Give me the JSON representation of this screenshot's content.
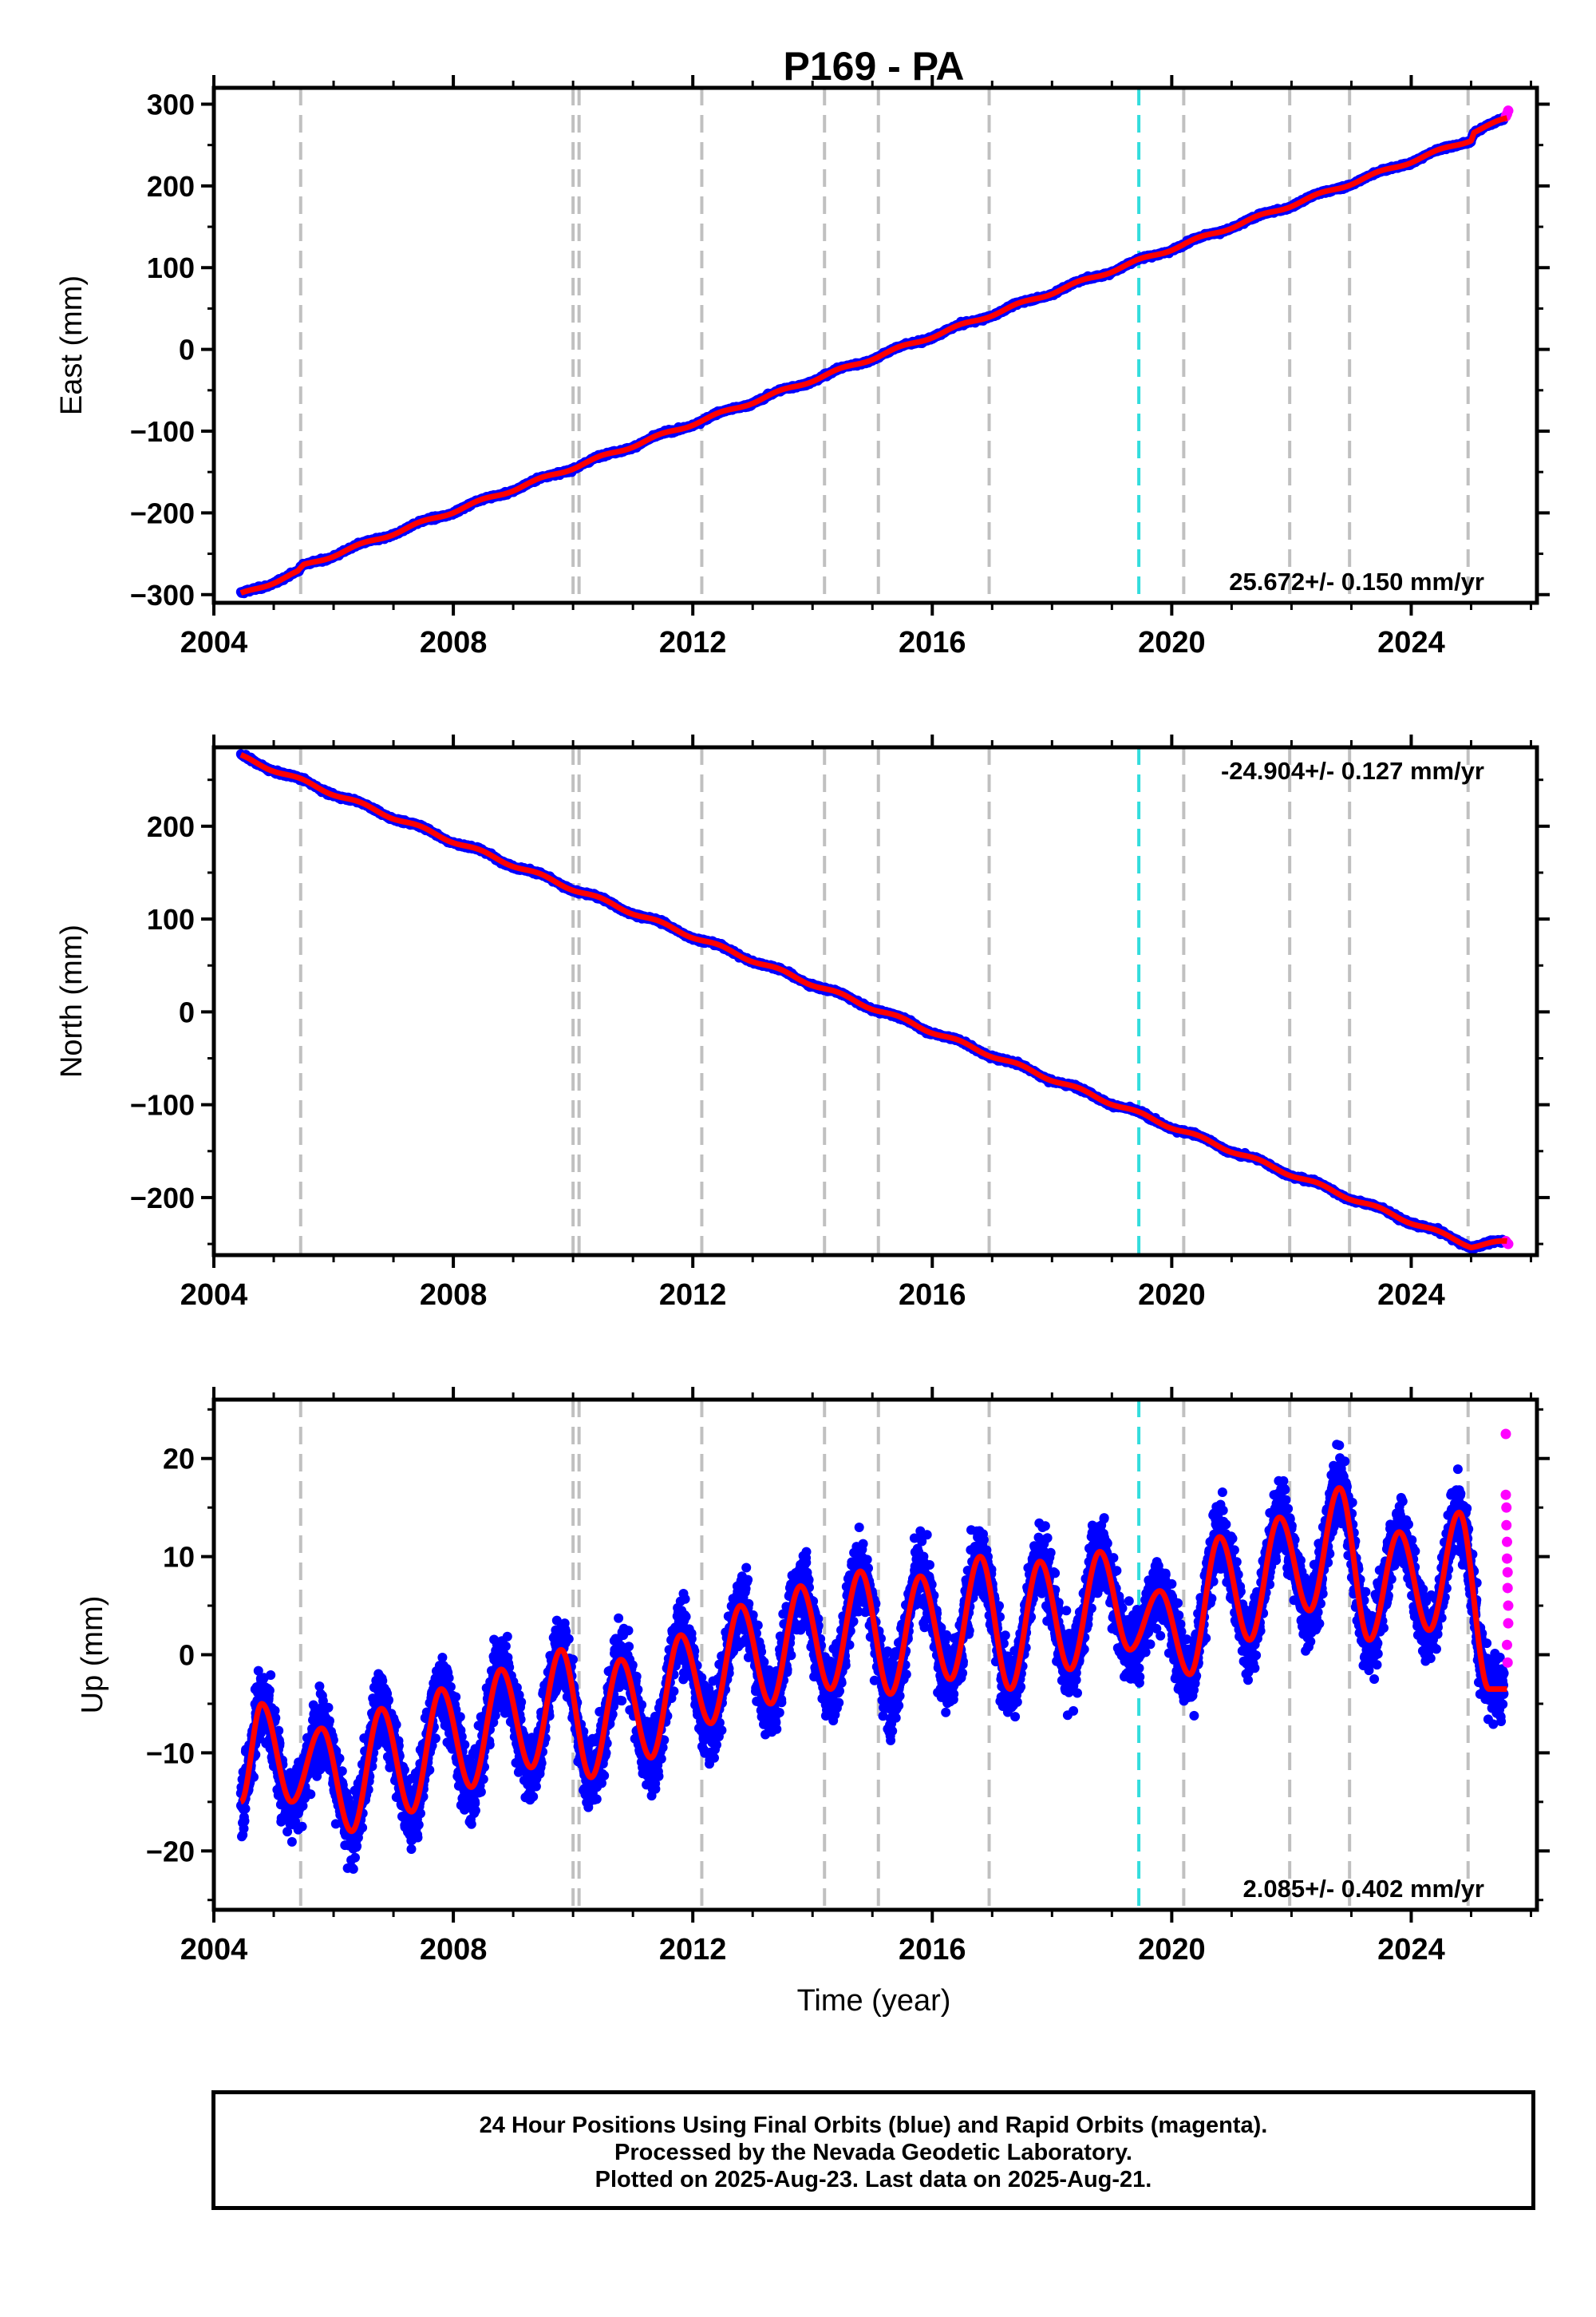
{
  "title": "P169 - PA",
  "xlabel": "Time (year)",
  "chart_data": [
    {
      "type": "scatter",
      "panel": "east",
      "ylabel": "East (mm)",
      "xlim": [
        2004.0,
        2026.1
      ],
      "ylim": [
        -310,
        320
      ],
      "yticks": [
        -300,
        -200,
        -100,
        0,
        100,
        200,
        300
      ],
      "xticks": [
        2004,
        2008,
        2012,
        2016,
        2020,
        2024
      ],
      "rate_label": "25.672+/- 0.150 mm/yr",
      "rate_position": "bottom-right",
      "series": [
        {
          "name": "Final Orbits (blue)",
          "color": "#0000ff",
          "trend": {
            "x": [
              2004.45,
              2005.4,
              2005.5,
              2025.0,
              2025.05,
              2025.6
            ],
            "y": [
              -300,
              -273,
              -265,
              257,
              267,
              282
            ]
          }
        },
        {
          "name": "Rapid Orbits (magenta)",
          "color": "#ff00ff",
          "x": [
            2025.58,
            2025.6,
            2025.62
          ],
          "y": [
            285,
            288,
            292
          ]
        },
        {
          "name": "model",
          "color": "#ff0000",
          "type": "line"
        }
      ]
    },
    {
      "type": "scatter",
      "panel": "north",
      "ylabel": "North (mm)",
      "xlim": [
        2004.0,
        2026.1
      ],
      "ylim": [
        -262,
        285
      ],
      "yticks": [
        -200,
        -100,
        0,
        100,
        200
      ],
      "xticks": [
        2004,
        2008,
        2012,
        2016,
        2020,
        2024
      ],
      "rate_label": "-24.904+/- 0.127 mm/yr",
      "rate_position": "top-right",
      "series": [
        {
          "name": "Final Orbits (blue)",
          "color": "#0000ff",
          "trend": {
            "x": [
              2004.45,
              2025.0,
              2025.6
            ],
            "y": [
              275,
              -252,
              -248
            ]
          }
        },
        {
          "name": "Rapid Orbits (magenta)",
          "color": "#ff00ff",
          "x": [
            2025.58,
            2025.6,
            2025.62
          ],
          "y": [
            -247,
            -249,
            -250
          ]
        },
        {
          "name": "model",
          "color": "#ff0000",
          "type": "line"
        }
      ]
    },
    {
      "type": "scatter",
      "panel": "up",
      "ylabel": "Up (mm)",
      "xlim": [
        2004.0,
        2026.1
      ],
      "ylim": [
        -26,
        26
      ],
      "yticks": [
        -20,
        -10,
        0,
        10,
        20
      ],
      "xticks": [
        2004,
        2008,
        2012,
        2016,
        2020,
        2024
      ],
      "rate_label": "2.085+/- 0.402 mm/yr",
      "rate_position": "bottom-right",
      "seasonal": {
        "peaks_x": [
          2004.8,
          2005.8,
          2006.8,
          2007.8,
          2008.8,
          2009.8,
          2010.8,
          2011.8,
          2012.8,
          2013.8,
          2014.8,
          2015.8,
          2016.8,
          2017.8,
          2018.8,
          2019.8,
          2020.8,
          2021.8,
          2022.8,
          2023.8,
          2024.8
        ],
        "peaks_y": [
          -5,
          -7.5,
          -5.5,
          -3.5,
          -1.5,
          0.5,
          -0.5,
          2,
          5,
          7,
          8.5,
          8,
          10,
          9.5,
          10.5,
          6.5,
          12,
          14,
          17,
          12.5,
          14.5
        ],
        "troughs_x": [
          2004.45,
          2005.3,
          2006.3,
          2007.3,
          2008.3,
          2009.3,
          2010.3,
          2011.3,
          2012.3,
          2013.3,
          2014.3,
          2015.3,
          2016.3,
          2017.3,
          2018.3,
          2019.3,
          2020.3,
          2021.3,
          2022.3,
          2023.3,
          2024.3,
          2025.3
        ],
        "troughs_y": [
          -15,
          -15,
          -18,
          -16,
          -13.5,
          -11.5,
          -12.5,
          -10.5,
          -7,
          -5,
          -3.5,
          -4,
          -2.5,
          -3.5,
          -1.5,
          0.5,
          -2,
          1.5,
          4.5,
          1.5,
          2.5,
          -3.5
        ]
      },
      "series": [
        {
          "name": "Final Orbits (blue)",
          "color": "#0000ff"
        },
        {
          "name": "Rapid Orbits (magenta)",
          "color": "#ff00ff",
          "x": [
            2025.58,
            2025.58,
            2025.59,
            2025.59,
            2025.6,
            2025.6,
            2025.61,
            2025.61,
            2025.62,
            2025.62,
            2025.6,
            2025.61
          ],
          "y": [
            22.5,
            16.3,
            15.0,
            13.2,
            11.5,
            9.8,
            8.4,
            6.8,
            5.0,
            3.2,
            1.0,
            -0.8
          ]
        },
        {
          "name": "model",
          "color": "#ff0000",
          "type": "line"
        }
      ]
    }
  ],
  "event_lines": {
    "gray": [
      2005.45,
      2010.0,
      2010.1,
      2012.15,
      2014.2,
      2015.1,
      2016.95,
      2020.2,
      2021.97,
      2022.97,
      2024.95
    ],
    "cyan": [
      2019.45
    ],
    "gray_color": "#c0c0c0",
    "cyan_color": "#33dddd"
  },
  "footer": {
    "line1": "24 Hour Positions Using Final Orbits (blue) and Rapid Orbits (magenta).",
    "line2": "Processed by the Nevada Geodetic Laboratory.",
    "line3": "Plotted on 2025-Aug-23. Last data on 2025-Aug-21."
  }
}
